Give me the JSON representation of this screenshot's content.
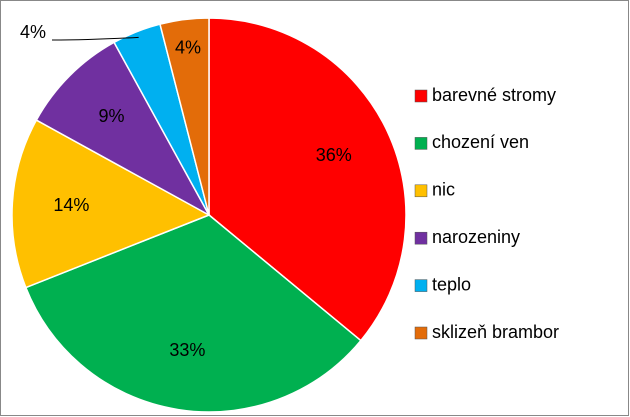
{
  "chart_data": {
    "type": "pie",
    "categories": [
      "barevné stromy",
      "chození ven",
      "nic",
      "narozeniny",
      "teplo",
      "sklizeň brambor"
    ],
    "values": [
      36,
      33,
      14,
      9,
      4,
      4
    ],
    "value_labels": [
      "36%",
      "33%",
      "14%",
      "9%",
      "4%",
      "4%"
    ],
    "colors": [
      "#ff0000",
      "#00b050",
      "#ffc000",
      "#7030a0",
      "#00b0f0",
      "#e36c09"
    ],
    "legend": "right"
  }
}
